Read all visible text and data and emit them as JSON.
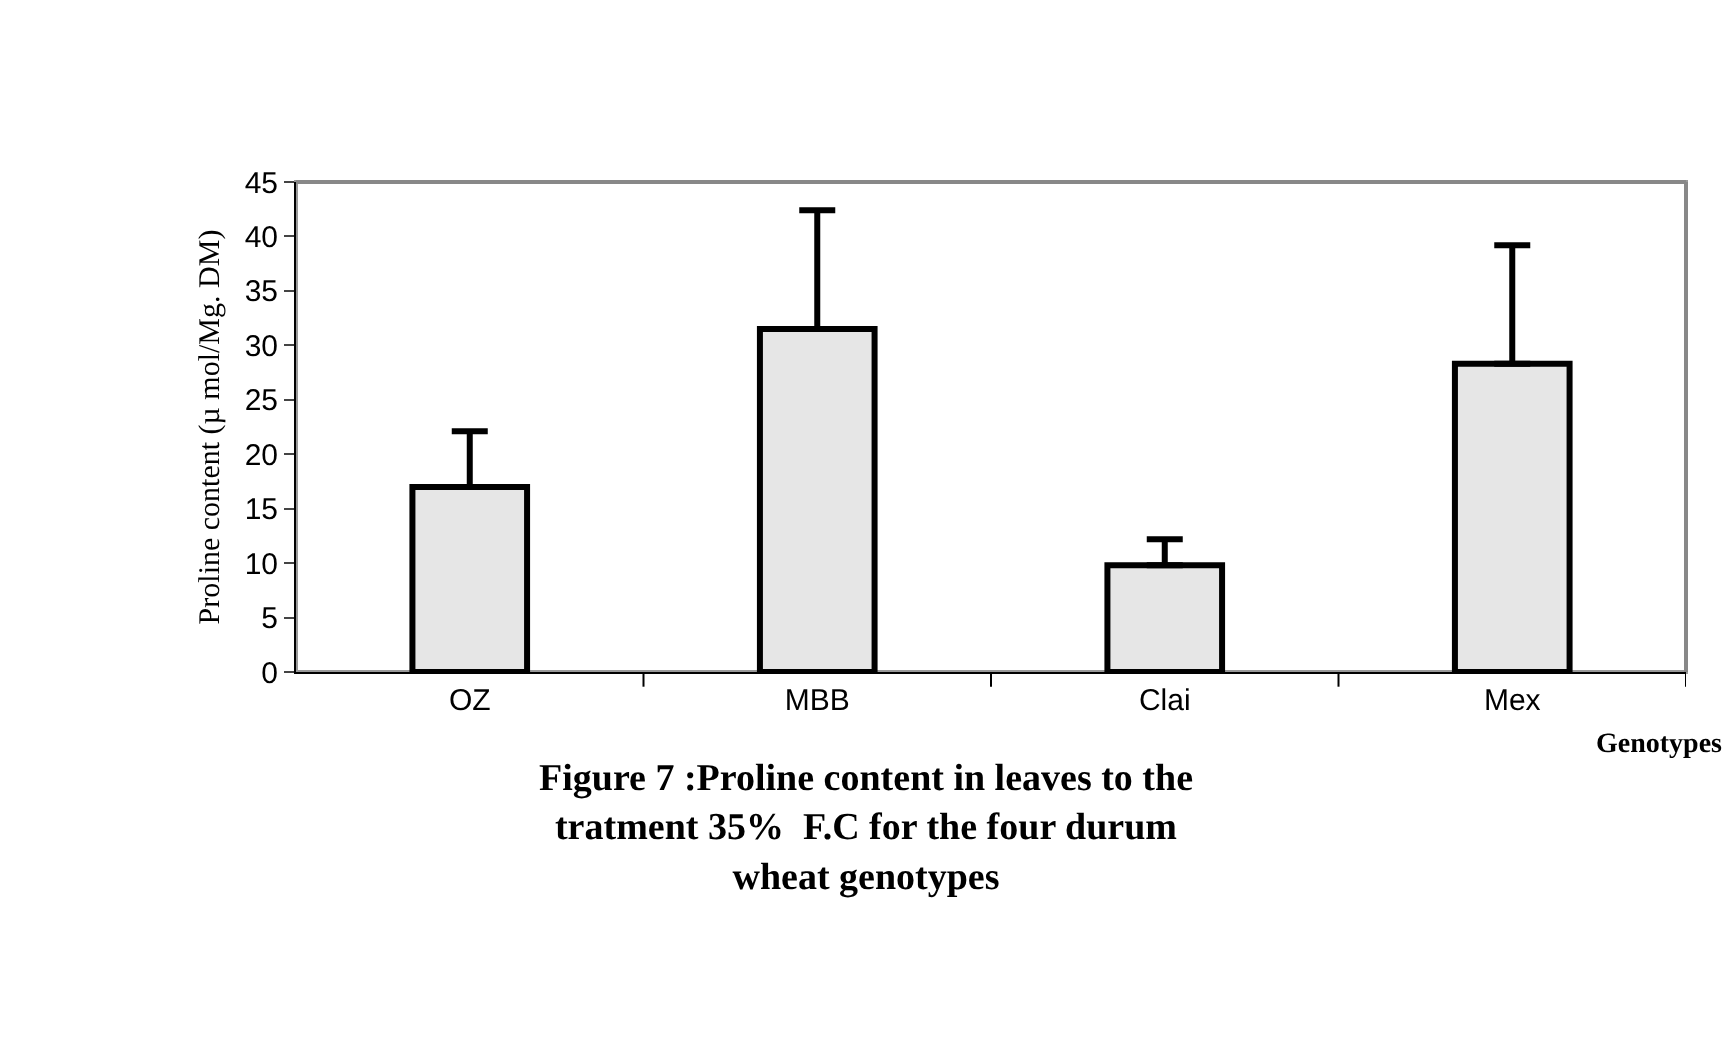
{
  "chart_data": {
    "type": "bar",
    "title": "Figure 7 :Proline content in leaves to the\ntratment 35%  F.C for the four durum\nwheat genotypes",
    "xlabel": "Genotypes",
    "ylabel": "Proline content (µ mol/Mg. DM)",
    "categories": [
      "OZ",
      "MBB",
      "Clai",
      "Mex"
    ],
    "values": [
      17,
      31.5,
      9.8,
      28.3
    ],
    "errors": [
      [
        17,
        22.1
      ],
      [
        31.5,
        42.4
      ],
      [
        9.8,
        12.2
      ],
      [
        28.3,
        39.2
      ]
    ],
    "color": "#e6e6e6",
    "ylim": [
      0,
      45
    ],
    "yticks": [
      0,
      5,
      10,
      15,
      20,
      25,
      30,
      35,
      40,
      45
    ],
    "grid": false
  }
}
